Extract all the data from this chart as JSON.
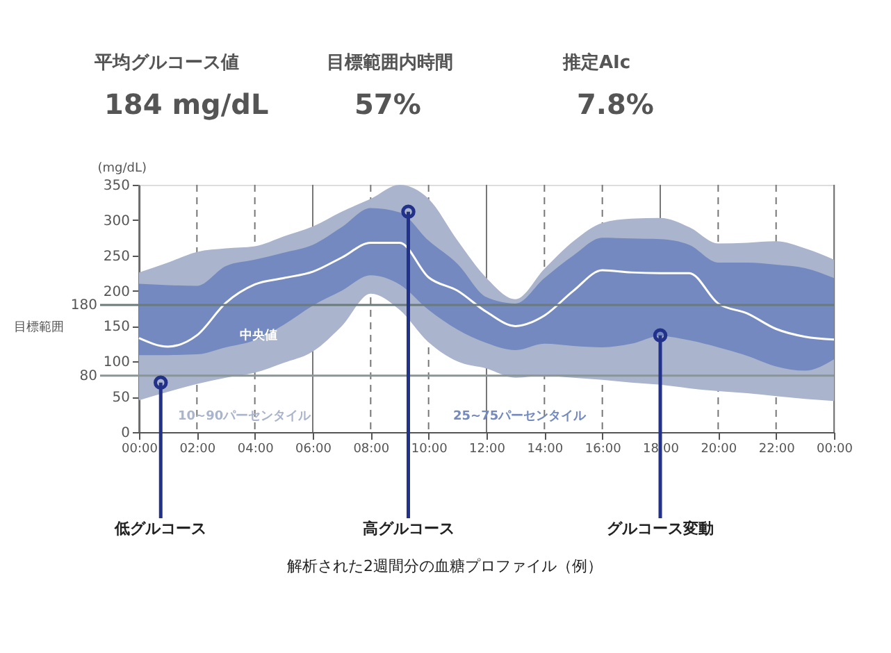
{
  "chart_data": {
    "type": "line",
    "x": [
      0,
      1,
      2,
      3,
      4,
      5,
      6,
      7,
      8,
      9,
      10,
      11,
      12,
      13,
      14,
      15,
      16,
      17,
      18,
      19,
      20,
      21,
      22,
      23,
      24
    ],
    "series": [
      {
        "name": "10~90パーセンタイル",
        "type": "line",
        "color": "#aab4cc",
        "values": [
          null,
          null,
          null,
          null,
          null,
          null,
          null,
          null,
          null,
          null,
          null,
          null,
          null,
          null,
          null,
          null,
          null,
          null,
          null,
          null,
          null,
          null,
          null,
          null,
          null
        ],
        "lower": [
          45,
          57,
          68,
          77,
          84,
          98,
          114,
          150,
          196,
          173,
          127,
          100,
          90,
          77,
          80,
          77,
          74,
          70,
          67,
          62,
          58,
          55,
          51,
          47,
          44
        ],
        "upper": [
          226,
          240,
          255,
          260,
          263,
          277,
          291,
          312,
          330,
          350,
          330,
          271,
          218,
          188,
          231,
          270,
          296,
          302,
          303,
          290,
          267,
          268,
          270,
          260,
          244
        ]
      },
      {
        "name": "25~75パーセンタイル",
        "type": "line",
        "color": "#7389bf",
        "values": [
          null,
          null,
          null,
          null,
          null,
          null,
          null,
          null,
          null,
          null,
          null,
          null,
          null,
          null,
          null,
          null,
          null,
          null,
          null,
          null,
          null,
          null,
          null,
          null,
          null
        ],
        "lower": [
          109,
          109,
          110,
          120,
          130,
          152,
          179,
          200,
          222,
          209,
          173,
          145,
          126,
          116,
          125,
          122,
          120,
          125,
          136,
          130,
          120,
          108,
          93,
          87,
          103
        ],
        "upper": [
          210,
          208,
          207,
          235,
          244,
          254,
          265,
          290,
          317,
          311,
          271,
          238,
          191,
          182,
          218,
          250,
          275,
          274,
          273,
          265,
          240,
          240,
          237,
          232,
          218
        ]
      },
      {
        "name": "中央値",
        "type": "line",
        "color": "#ffffff",
        "values": [
          133,
          121,
          137,
          183,
          209,
          218,
          227,
          247,
          268,
          268,
          219,
          200,
          170,
          150,
          165,
          200,
          229,
          226,
          225,
          225,
          182,
          168,
          146,
          135,
          131
        ]
      }
    ],
    "ylabel": "(mg/dL)",
    "xlim": [
      0,
      24
    ],
    "xticks": [
      {
        "value": 0,
        "label": "00:00"
      },
      {
        "value": 2,
        "label": "02:00"
      },
      {
        "value": 4,
        "label": "04:00"
      },
      {
        "value": 6,
        "label": "06:00"
      },
      {
        "value": 8,
        "label": "08:00"
      },
      {
        "value": 10,
        "label": "10:00"
      },
      {
        "value": 12,
        "label": "12:00"
      },
      {
        "value": 14,
        "label": "14:00"
      },
      {
        "value": 16,
        "label": "16:00"
      },
      {
        "value": 18,
        "label": "18:00"
      },
      {
        "value": 20,
        "label": "20:00"
      },
      {
        "value": 22,
        "label": "22:00"
      },
      {
        "value": 24,
        "label": "00:00"
      }
    ],
    "ylim": [
      0,
      350
    ],
    "yticks": [
      0,
      50,
      100,
      150,
      200,
      250,
      300,
      350
    ],
    "grid": "x",
    "ref_lines": [
      {
        "axis": "y",
        "value": 180,
        "label": "180",
        "color": "#6b7b7b"
      },
      {
        "axis": "y",
        "value": 80,
        "label": "80",
        "color": "#8a9696"
      }
    ],
    "annotations": [
      "平均グルコース値",
      "184 mg/dL",
      "目標範囲内時間",
      "57%",
      "推定AIc",
      "7.8%",
      "目標範囲",
      "解析された2週間分の血糖プロファイル（例）",
      {
        "text": "低グルコース",
        "x": 0.75,
        "y": 70
      },
      {
        "text": "高グルコース",
        "x": 9.3,
        "y": 312
      },
      {
        "text": "グルコース変動",
        "x": 18,
        "y": 137
      }
    ]
  }
}
